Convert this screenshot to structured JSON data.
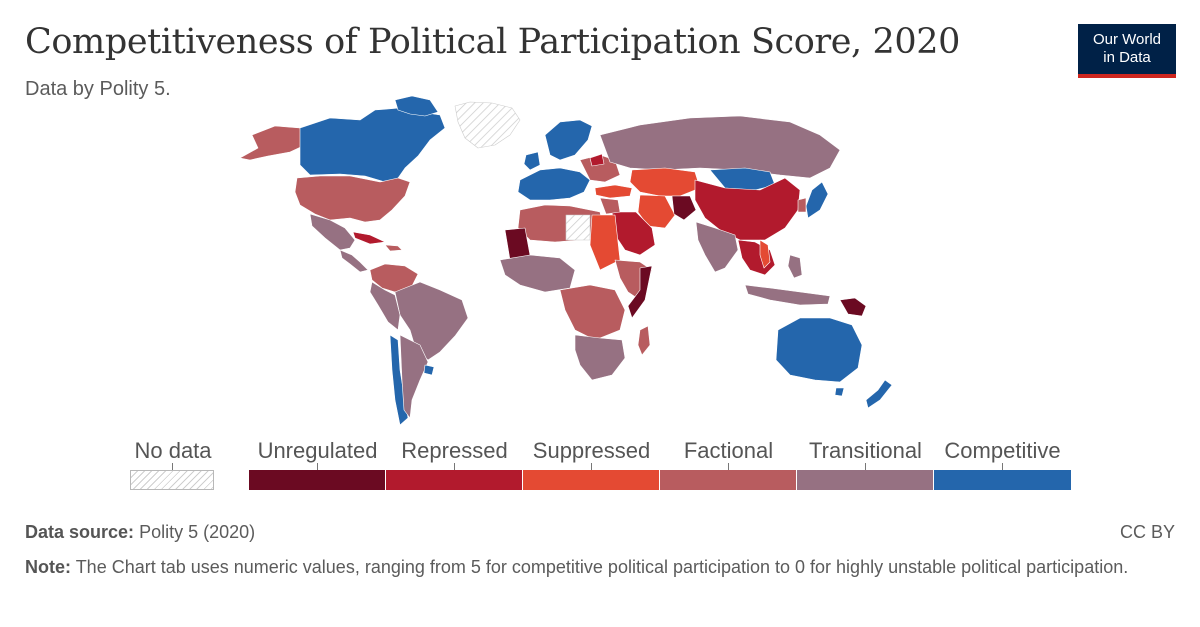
{
  "header": {
    "title": "Competitiveness of Political Participation Score, 2020",
    "subtitle": "Data by Polity 5."
  },
  "logo": {
    "line1": "Our World",
    "line2": "in Data"
  },
  "legend": {
    "no_data_label": "No data",
    "categories": [
      {
        "label": "Unregulated",
        "color": "#6b0a22"
      },
      {
        "label": "Repressed",
        "color": "#b21a2d"
      },
      {
        "label": "Suppressed",
        "color": "#e44a33"
      },
      {
        "label": "Factional",
        "color": "#b85c5f"
      },
      {
        "label": "Transitional",
        "color": "#967182"
      },
      {
        "label": "Competitive",
        "color": "#2466ac"
      }
    ]
  },
  "footer": {
    "source_label": "Data source:",
    "source_value": "Polity 5 (2020)",
    "license": "CC BY",
    "note_label": "Note:",
    "note_value": "The Chart tab uses numeric values, ranging from 5 for competitive political participation to 0 for highly unstable political participation."
  }
}
